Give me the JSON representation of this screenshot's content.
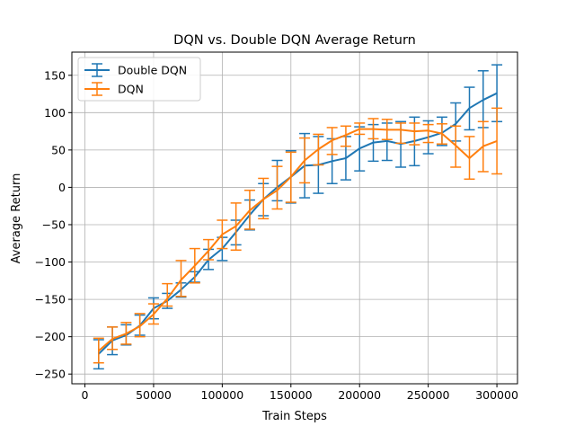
{
  "chart_data": {
    "type": "line",
    "title": "DQN vs. Double DQN Average Return",
    "xlabel": "Train Steps",
    "ylabel": "Average Return",
    "xlim": [
      -9500,
      315000
    ],
    "ylim": [
      -263,
      181
    ],
    "xticks": [
      0,
      50000,
      100000,
      150000,
      200000,
      250000,
      300000
    ],
    "xtick_labels": [
      "0",
      "50000",
      "100000",
      "150000",
      "200000",
      "250000",
      "300000"
    ],
    "yticks": [
      -250,
      -200,
      -150,
      -100,
      -50,
      0,
      50,
      100,
      150
    ],
    "ytick_labels": [
      "−250",
      "−200",
      "−150",
      "−100",
      "−50",
      "0",
      "50",
      "100",
      "150"
    ],
    "grid": true,
    "legend_position": "top-left",
    "x": [
      10000,
      20000,
      30000,
      40000,
      50000,
      60000,
      70000,
      80000,
      90000,
      100000,
      110000,
      120000,
      130000,
      140000,
      150000,
      160000,
      170000,
      180000,
      190000,
      200000,
      210000,
      220000,
      230000,
      240000,
      250000,
      260000,
      270000,
      280000,
      290000,
      300000
    ],
    "series": [
      {
        "name": "Double DQN",
        "color": "#1f77b4",
        "values": [
          -223,
          -205,
          -198,
          -185,
          -162,
          -152,
          -137,
          -120,
          -97,
          -82,
          -60,
          -37,
          -16,
          0,
          14,
          29,
          30,
          35,
          39,
          52,
          60,
          62,
          58,
          62,
          67,
          73,
          85,
          106,
          117,
          126
        ],
        "err_lower": [
          -243,
          -224,
          -211,
          -198,
          -176,
          -162,
          -147,
          -127,
          -110,
          -98,
          -77,
          -57,
          -38,
          -18,
          -21,
          -14,
          -8,
          5,
          10,
          22,
          35,
          36,
          27,
          29,
          45,
          56,
          62,
          77,
          80,
          88
        ],
        "err_upper": [
          -204,
          -187,
          -184,
          -171,
          -148,
          -142,
          -128,
          -113,
          -83,
          -67,
          -44,
          -17,
          5,
          36,
          49,
          72,
          68,
          65,
          68,
          81,
          84,
          86,
          88,
          94,
          89,
          94,
          113,
          134,
          156,
          164
        ]
      },
      {
        "name": "DQN",
        "color": "#ff7f0e",
        "values": [
          -219,
          -203,
          -196,
          -186,
          -170,
          -149,
          -124,
          -105,
          -85,
          -63,
          -52,
          -31,
          -16,
          -4,
          14,
          36,
          51,
          63,
          70,
          78,
          78,
          77,
          77,
          75,
          76,
          72,
          56,
          39,
          55,
          62
        ],
        "err_lower": [
          -235,
          -217,
          -210,
          -200,
          -183,
          -159,
          -146,
          -128,
          -97,
          -82,
          -84,
          -56,
          -42,
          -29,
          -20,
          6,
          30,
          44,
          55,
          71,
          65,
          64,
          59,
          57,
          60,
          58,
          27,
          11,
          21,
          18
        ],
        "err_upper": [
          -202,
          -187,
          -181,
          -169,
          -156,
          -129,
          -98,
          -82,
          -70,
          -44,
          -21,
          -4,
          12,
          28,
          47,
          66,
          71,
          80,
          82,
          86,
          92,
          91,
          86,
          86,
          84,
          85,
          82,
          68,
          88,
          106
        ]
      }
    ]
  }
}
